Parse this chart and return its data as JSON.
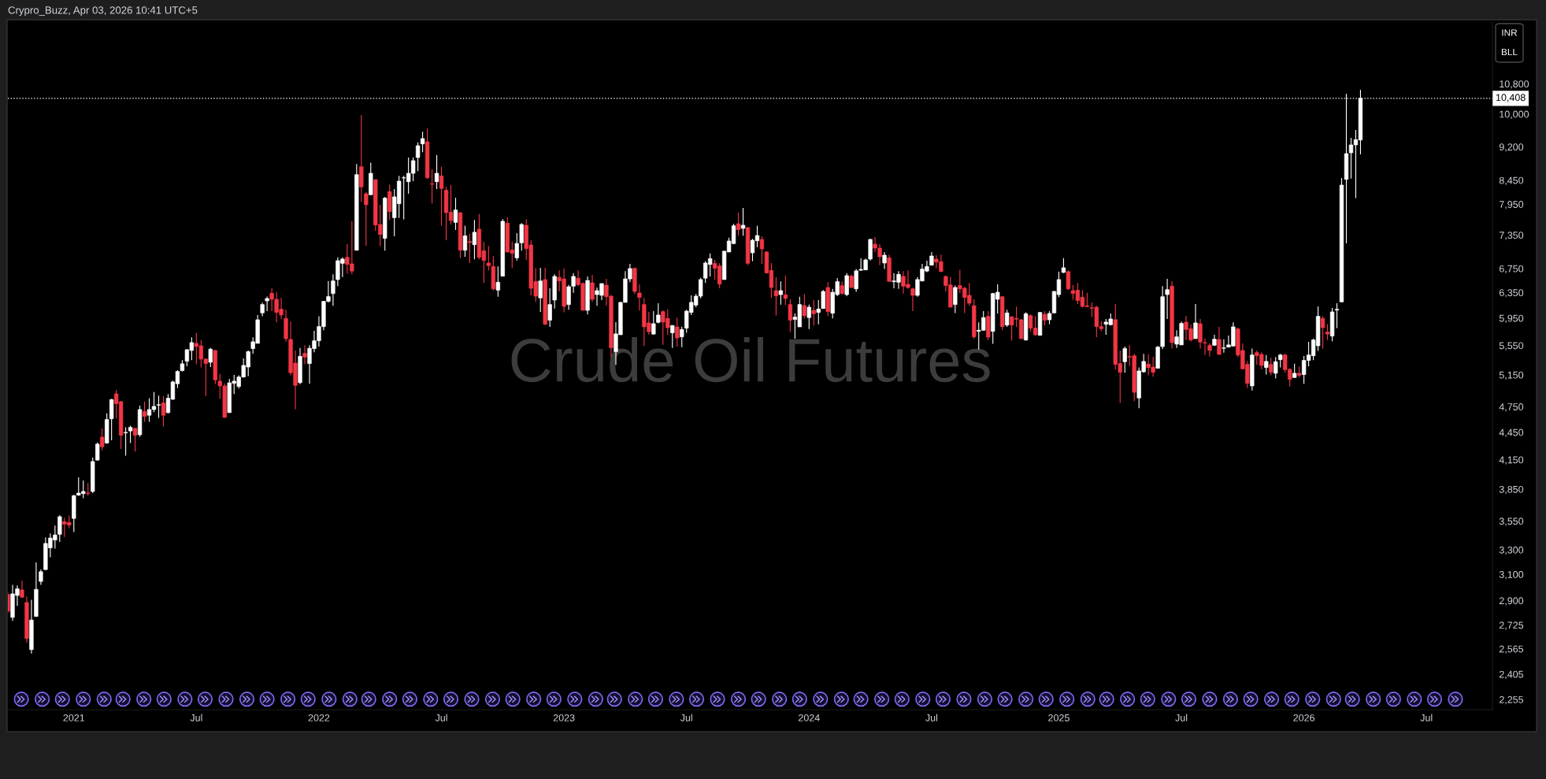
{
  "chart_data": {
    "type": "candlestick",
    "title": "Crude Oil Futures",
    "annotations": [
      "Crypro_Buzz, Apr 03, 2026 10:41 UTC+5",
      "INR",
      "BLL"
    ],
    "log": "y",
    "xlim": [
      "2020-09-28",
      "2026-10-12"
    ],
    "ylim": [
      2197,
      12650
    ],
    "xticks": [
      {
        "value": "2021-01-04",
        "label": "2021"
      },
      {
        "value": "2021-07-05",
        "label": "Jul"
      },
      {
        "value": "2022-01-03",
        "label": "2022"
      },
      {
        "value": "2022-07-04",
        "label": "Jul"
      },
      {
        "value": "2023-01-02",
        "label": "2023"
      },
      {
        "value": "2023-07-03",
        "label": "Jul"
      },
      {
        "value": "2024-01-01",
        "label": "2024"
      },
      {
        "value": "2024-07-01",
        "label": "Jul"
      },
      {
        "value": "2025-01-06",
        "label": "2025"
      },
      {
        "value": "2025-07-07",
        "label": "Jul"
      },
      {
        "value": "2026-01-05",
        "label": "2026"
      },
      {
        "value": "2026-07-06",
        "label": "Jul"
      }
    ],
    "yticks": [
      {
        "value": 2255,
        "label": "2,255"
      },
      {
        "value": 2405,
        "label": "2,405"
      },
      {
        "value": 2565,
        "label": "2,565"
      },
      {
        "value": 2725,
        "label": "2,725"
      },
      {
        "value": 2900,
        "label": "2,900"
      },
      {
        "value": 3100,
        "label": "3,100"
      },
      {
        "value": 3300,
        "label": "3,300"
      },
      {
        "value": 3550,
        "label": "3,550"
      },
      {
        "value": 3850,
        "label": "3,850"
      },
      {
        "value": 4150,
        "label": "4,150"
      },
      {
        "value": 4450,
        "label": "4,450"
      },
      {
        "value": 4750,
        "label": "4,750"
      },
      {
        "value": 5150,
        "label": "5,150"
      },
      {
        "value": 5550,
        "label": "5,550"
      },
      {
        "value": 5950,
        "label": "5,950"
      },
      {
        "value": 6350,
        "label": "6,350"
      },
      {
        "value": 6750,
        "label": "6,750"
      },
      {
        "value": 7350,
        "label": "7,350"
      },
      {
        "value": 7950,
        "label": "7,950"
      },
      {
        "value": 8450,
        "label": "8,450"
      },
      {
        "value": 9200,
        "label": "9,200"
      },
      {
        "value": 10000,
        "label": "10,000"
      },
      {
        "value": 10800,
        "label": "10,800"
      }
    ],
    "ref_lines": [
      {
        "axis": "y",
        "value": 10408,
        "label": "10,408",
        "color": "#ffffff",
        "line_style": "dotted"
      }
    ],
    "x": [
      "2020-09-28",
      "2020-10-05",
      "2020-10-12",
      "2020-10-19",
      "2020-10-26",
      "2020-11-02",
      "2020-11-09",
      "2020-11-16",
      "2020-11-23",
      "2020-11-30",
      "2020-12-07",
      "2020-12-14",
      "2020-12-21",
      "2020-12-28",
      "2021-01-04",
      "2021-01-11",
      "2021-01-18",
      "2021-01-25",
      "2021-02-01",
      "2021-02-08",
      "2021-02-15",
      "2021-02-22",
      "2021-03-01",
      "2021-03-08",
      "2021-03-15",
      "2021-03-22",
      "2021-03-29",
      "2021-04-05",
      "2021-04-12",
      "2021-04-19",
      "2021-04-26",
      "2021-05-03",
      "2021-05-10",
      "2021-05-17",
      "2021-05-24",
      "2021-05-31",
      "2021-06-07",
      "2021-06-14",
      "2021-06-21",
      "2021-06-28",
      "2021-07-05",
      "2021-07-12",
      "2021-07-19",
      "2021-07-26",
      "2021-08-02",
      "2021-08-09",
      "2021-08-16",
      "2021-08-23",
      "2021-08-30",
      "2021-09-06",
      "2021-09-13",
      "2021-09-20",
      "2021-09-27",
      "2021-10-04",
      "2021-10-11",
      "2021-10-18",
      "2021-10-25",
      "2021-11-01",
      "2021-11-08",
      "2021-11-15",
      "2021-11-22",
      "2021-11-29",
      "2021-12-06",
      "2021-12-13",
      "2021-12-20",
      "2021-12-27",
      "2022-01-03",
      "2022-01-10",
      "2022-01-17",
      "2022-01-24",
      "2022-01-31",
      "2022-02-07",
      "2022-02-14",
      "2022-02-21",
      "2022-02-28",
      "2022-03-07",
      "2022-03-14",
      "2022-03-21",
      "2022-03-28",
      "2022-04-04",
      "2022-04-11",
      "2022-04-18",
      "2022-04-25",
      "2022-05-02",
      "2022-05-09",
      "2022-05-16",
      "2022-05-23",
      "2022-05-30",
      "2022-06-06",
      "2022-06-13",
      "2022-06-20",
      "2022-06-27",
      "2022-07-04",
      "2022-07-11",
      "2022-07-18",
      "2022-07-25",
      "2022-08-01",
      "2022-08-08",
      "2022-08-15",
      "2022-08-22",
      "2022-08-29",
      "2022-09-05",
      "2022-09-12",
      "2022-09-19",
      "2022-09-26",
      "2022-10-03",
      "2022-10-10",
      "2022-10-17",
      "2022-10-24",
      "2022-10-31",
      "2022-11-07",
      "2022-11-14",
      "2022-11-21",
      "2022-11-28",
      "2022-12-05",
      "2022-12-12",
      "2022-12-19",
      "2022-12-26",
      "2023-01-02",
      "2023-01-09",
      "2023-01-16",
      "2023-01-23",
      "2023-01-30",
      "2023-02-06",
      "2023-02-13",
      "2023-02-20",
      "2023-02-27",
      "2023-03-06",
      "2023-03-13",
      "2023-03-20",
      "2023-03-27",
      "2023-04-03",
      "2023-04-10",
      "2023-04-17",
      "2023-04-24",
      "2023-05-01",
      "2023-05-08",
      "2023-05-15",
      "2023-05-22",
      "2023-05-29",
      "2023-06-05",
      "2023-06-12",
      "2023-06-19",
      "2023-06-26",
      "2023-07-03",
      "2023-07-10",
      "2023-07-17",
      "2023-07-24",
      "2023-07-31",
      "2023-08-07",
      "2023-08-14",
      "2023-08-21",
      "2023-08-28",
      "2023-09-04",
      "2023-09-11",
      "2023-09-18",
      "2023-09-25",
      "2023-10-02",
      "2023-10-09",
      "2023-10-16",
      "2023-10-23",
      "2023-10-30",
      "2023-11-06",
      "2023-11-13",
      "2023-11-20",
      "2023-11-27",
      "2023-12-04",
      "2023-12-11",
      "2023-12-18",
      "2023-12-25",
      "2024-01-01",
      "2024-01-08",
      "2024-01-15",
      "2024-01-22",
      "2024-01-29",
      "2024-02-05",
      "2024-02-12",
      "2024-02-19",
      "2024-02-26",
      "2024-03-04",
      "2024-03-11",
      "2024-03-18",
      "2024-03-25",
      "2024-04-01",
      "2024-04-08",
      "2024-04-15",
      "2024-04-22",
      "2024-04-29",
      "2024-05-06",
      "2024-05-13",
      "2024-05-20",
      "2024-05-27",
      "2024-06-03",
      "2024-06-10",
      "2024-06-17",
      "2024-06-24",
      "2024-07-01",
      "2024-07-08",
      "2024-07-15",
      "2024-07-22",
      "2024-07-29",
      "2024-08-05",
      "2024-08-12",
      "2024-08-19",
      "2024-08-26",
      "2024-09-02",
      "2024-09-09",
      "2024-09-16",
      "2024-09-23",
      "2024-09-30",
      "2024-10-07",
      "2024-10-14",
      "2024-10-21",
      "2024-10-28",
      "2024-11-04",
      "2024-11-11",
      "2024-11-18",
      "2024-11-25",
      "2024-12-02",
      "2024-12-09",
      "2024-12-16",
      "2024-12-23",
      "2024-12-30",
      "2025-01-06",
      "2025-01-13",
      "2025-01-20",
      "2025-01-27",
      "2025-02-03",
      "2025-02-10",
      "2025-02-17",
      "2025-02-24",
      "2025-03-03",
      "2025-03-10",
      "2025-03-17",
      "2025-03-24",
      "2025-03-31",
      "2025-04-07",
      "2025-04-14",
      "2025-04-21",
      "2025-04-28",
      "2025-05-05",
      "2025-05-12",
      "2025-05-19",
      "2025-05-26",
      "2025-06-02",
      "2025-06-09",
      "2025-06-16",
      "2025-06-23",
      "2025-06-30",
      "2025-07-07",
      "2025-07-14",
      "2025-07-21",
      "2025-07-28",
      "2025-08-04",
      "2025-08-11",
      "2025-08-18",
      "2025-08-25",
      "2025-09-01",
      "2025-09-08",
      "2025-09-15",
      "2025-09-22",
      "2025-09-29",
      "2025-10-06",
      "2025-10-13",
      "2025-10-20",
      "2025-10-27",
      "2025-11-03",
      "2025-11-10",
      "2025-11-17",
      "2025-11-24",
      "2025-12-01",
      "2025-12-08",
      "2025-12-15",
      "2025-12-22",
      "2025-12-29",
      "2026-01-05",
      "2026-01-12",
      "2026-01-19",
      "2026-01-26",
      "2026-02-02",
      "2026-02-09",
      "2026-02-16",
      "2026-02-23",
      "2026-03-02",
      "2026-03-09",
      "2026-03-16",
      "2026-03-23",
      "2026-03-30"
    ],
    "ohlc": [
      [
        2945,
        2960,
        2810,
        2823
      ],
      [
        2779,
        3018,
        2754,
        2950
      ],
      [
        2938,
        3014,
        2861,
        2988
      ],
      [
        2980,
        3050,
        2919,
        2925
      ],
      [
        2886,
        2931,
        2606,
        2633
      ],
      [
        2560,
        2905,
        2534,
        2760
      ],
      [
        2786,
        3196,
        2782,
        2984
      ],
      [
        3045,
        3138,
        3018,
        3121
      ],
      [
        3138,
        3406,
        3134,
        3354
      ],
      [
        3316,
        3440,
        3237,
        3400
      ],
      [
        3383,
        3510,
        3310,
        3427
      ],
      [
        3433,
        3605,
        3366,
        3590
      ],
      [
        3545,
        3581,
        3410,
        3523
      ],
      [
        3538,
        3598,
        3485,
        3515
      ],
      [
        3574,
        3795,
        3452,
        3787
      ],
      [
        3792,
        3969,
        3787,
        3812
      ],
      [
        3807,
        3937,
        3762,
        3828
      ],
      [
        3812,
        3911,
        3787,
        3807
      ],
      [
        3828,
        4173,
        3812,
        4131
      ],
      [
        4146,
        4337,
        4140,
        4318
      ],
      [
        4396,
        4494,
        4251,
        4289
      ],
      [
        4330,
        4669,
        4324,
        4597
      ],
      [
        4606,
        4846,
        4360,
        4836
      ],
      [
        4908,
        4958,
        4606,
        4785
      ],
      [
        4811,
        4817,
        4266,
        4416
      ],
      [
        4443,
        4506,
        4192,
        4449
      ],
      [
        4465,
        4524,
        4330,
        4506
      ],
      [
        4494,
        4500,
        4238,
        4416
      ],
      [
        4422,
        4763,
        4399,
        4715
      ],
      [
        4690,
        4811,
        4570,
        4634
      ],
      [
        4647,
        4853,
        4570,
        4715
      ],
      [
        4715,
        4931,
        4684,
        4753
      ],
      [
        4768,
        4885,
        4615,
        4773
      ],
      [
        4795,
        4879,
        4515,
        4647
      ],
      [
        4678,
        4905,
        4669,
        4853
      ],
      [
        4840,
        5075,
        4833,
        5058
      ],
      [
        5035,
        5212,
        4980,
        5195
      ],
      [
        5205,
        5346,
        5195,
        5297
      ],
      [
        5332,
        5498,
        5265,
        5491
      ],
      [
        5480,
        5666,
        5346,
        5591
      ],
      [
        5580,
        5730,
        5290,
        5535
      ],
      [
        5546,
        5628,
        5247,
        5361
      ],
      [
        5361,
        5371,
        4879,
        5300
      ],
      [
        5318,
        5516,
        5254,
        5498
      ],
      [
        5480,
        5487,
        5029,
        5084
      ],
      [
        5068,
        5161,
        4846,
        5007
      ],
      [
        5007,
        5040,
        4615,
        4622
      ],
      [
        4678,
        5098,
        4678,
        5047
      ],
      [
        5040,
        5150,
        4905,
        5068
      ],
      [
        5000,
        5143,
        4974,
        5122
      ],
      [
        5122,
        5371,
        5115,
        5275
      ],
      [
        5254,
        5480,
        5133,
        5464
      ],
      [
        5506,
        5666,
        5432,
        5602
      ],
      [
        5580,
        5997,
        5580,
        5925
      ],
      [
        6030,
        6188,
        5977,
        6159
      ],
      [
        6217,
        6285,
        6057,
        6254
      ],
      [
        6339,
        6419,
        6057,
        6242
      ],
      [
        6242,
        6356,
        5886,
        6037
      ],
      [
        6086,
        6265,
        5937,
        5997
      ],
      [
        5946,
        6077,
        5603,
        5647
      ],
      [
        5636,
        5898,
        5143,
        5178
      ],
      [
        5307,
        5480,
        4720,
        5014
      ],
      [
        5049,
        5516,
        5029,
        5399
      ],
      [
        5441,
        5553,
        5290,
        5388
      ],
      [
        5300,
        5553,
        5035,
        5510
      ],
      [
        5506,
        5761,
        5454,
        5617
      ],
      [
        5617,
        5977,
        5535,
        5823
      ],
      [
        5823,
        6217,
        5768,
        6209
      ],
      [
        6209,
        6540,
        6193,
        6285
      ],
      [
        6334,
        6651,
        6140,
        6540
      ],
      [
        6563,
        6945,
        6454,
        6886
      ],
      [
        6840,
        6945,
        6606,
        6914
      ],
      [
        6945,
        7182,
        6664,
        6821
      ],
      [
        6831,
        7616,
        6651,
        6706
      ],
      [
        7072,
        8805,
        7063,
        8572
      ],
      [
        8746,
        9977,
        8002,
        8308
      ],
      [
        8165,
        8198,
        7154,
        7939
      ],
      [
        8144,
        8839,
        8144,
        8601
      ],
      [
        8464,
        8464,
        7426,
        7540
      ],
      [
        7551,
        7939,
        7145,
        7361
      ],
      [
        7290,
        8100,
        7063,
        8073
      ],
      [
        8210,
        8359,
        7637,
        7802
      ],
      [
        7683,
        8264,
        7327,
        8100
      ],
      [
        7960,
        8544,
        7675,
        8431
      ],
      [
        8498,
        8544,
        7650,
        8504
      ],
      [
        8419,
        8953,
        8165,
        8601
      ],
      [
        8601,
        8953,
        8431,
        8882
      ],
      [
        8953,
        9306,
        8648,
        9226
      ],
      [
        9269,
        9559,
        9074,
        9395
      ],
      [
        9319,
        9635,
        8477,
        8504
      ],
      [
        8375,
        8688,
        7965,
        8365
      ],
      [
        8419,
        9013,
        8264,
        8601
      ],
      [
        8544,
        8746,
        7526,
        8275
      ],
      [
        8237,
        8308,
        7254,
        7781
      ],
      [
        7792,
        8348,
        7551,
        7627
      ],
      [
        7591,
        8084,
        7446,
        7834
      ],
      [
        7781,
        7781,
        6931,
        7072
      ],
      [
        7072,
        7526,
        6955,
        7337
      ],
      [
        7230,
        7376,
        6845,
        7211
      ],
      [
        7172,
        7637,
        6909,
        7402
      ],
      [
        7461,
        7755,
        6909,
        6945
      ],
      [
        7063,
        7221,
        6506,
        6890
      ],
      [
        6845,
        7149,
        6718,
        6799
      ],
      [
        6786,
        6969,
        6380,
        6410
      ],
      [
        6389,
        6786,
        6283,
        6519
      ],
      [
        6620,
        7653,
        6620,
        7612
      ],
      [
        7577,
        7693,
        7030,
        7040
      ],
      [
        7077,
        7230,
        6754,
        7016
      ],
      [
        6936,
        7387,
        6890,
        7195
      ],
      [
        7207,
        7577,
        7063,
        7551
      ],
      [
        7536,
        7653,
        6900,
        7100
      ],
      [
        7168,
        7254,
        6305,
        6419
      ],
      [
        6532,
        6754,
        6201,
        6292
      ],
      [
        6264,
        6763,
        6045,
        6540
      ],
      [
        6563,
        6763,
        5846,
        5858
      ],
      [
        5918,
        6419,
        5819,
        6159
      ],
      [
        6230,
        6651,
        6097,
        6616
      ],
      [
        6600,
        6718,
        6368,
        6540
      ],
      [
        6574,
        6750,
        6037,
        6130
      ],
      [
        6159,
        6475,
        6077,
        6445
      ],
      [
        6454,
        6673,
        6347,
        6616
      ],
      [
        6587,
        6718,
        6454,
        6479
      ],
      [
        6497,
        6519,
        6069,
        6069
      ],
      [
        6069,
        6616,
        6005,
        6548
      ],
      [
        6510,
        6642,
        6201,
        6242
      ],
      [
        6317,
        6432,
        6140,
        6381
      ],
      [
        6305,
        6497,
        6230,
        6497
      ],
      [
        6471,
        6574,
        6143,
        6283
      ],
      [
        6292,
        6313,
        5389,
        5517
      ],
      [
        5464,
        5890,
        5282,
        5716
      ],
      [
        5703,
        6201,
        5703,
        6193
      ],
      [
        6193,
        6706,
        6193,
        6574
      ],
      [
        6574,
        6831,
        6519,
        6750
      ],
      [
        6754,
        6763,
        6326,
        6368
      ],
      [
        6343,
        6484,
        6065,
        6271
      ],
      [
        6159,
        6263,
        5542,
        5819
      ],
      [
        5878,
        6045,
        5703,
        5747
      ],
      [
        5713,
        6057,
        5703,
        5866
      ],
      [
        5886,
        6180,
        5870,
        5997
      ],
      [
        6049,
        6069,
        5560,
        5890
      ],
      [
        5946,
        6085,
        5703,
        5807
      ],
      [
        5732,
        5846,
        5516,
        5839
      ],
      [
        5819,
        5958,
        5535,
        5658
      ],
      [
        5673,
        5823,
        5527,
        5780
      ],
      [
        5800,
        6077,
        5732,
        6057
      ],
      [
        6037,
        6305,
        5997,
        6193
      ],
      [
        6151,
        6326,
        6118,
        6292
      ],
      [
        6292,
        6593,
        6258,
        6563
      ],
      [
        6587,
        6877,
        6506,
        6845
      ],
      [
        6821,
        7016,
        6616,
        6923
      ],
      [
        6840,
        6900,
        6563,
        6754
      ],
      [
        6795,
        6840,
        6419,
        6488
      ],
      [
        6563,
        7063,
        6563,
        7054
      ],
      [
        7040,
        7303,
        7040,
        7240
      ],
      [
        7192,
        7563,
        7182,
        7526
      ],
      [
        7565,
        7781,
        7337,
        7451
      ],
      [
        7476,
        7875,
        7337,
        7536
      ],
      [
        7491,
        7501,
        6808,
        6840
      ],
      [
        7026,
        7279,
        6877,
        7254
      ],
      [
        7244,
        7526,
        7126,
        7341
      ],
      [
        7269,
        7327,
        6831,
        7096
      ],
      [
        7040,
        7054,
        6666,
        6675
      ],
      [
        6718,
        6845,
        6263,
        6432
      ],
      [
        6381,
        6606,
        5989,
        6296
      ],
      [
        6317,
        6532,
        6159,
        6381
      ],
      [
        6313,
        6629,
        6147,
        6254
      ],
      [
        6159,
        6242,
        5747,
        5918
      ],
      [
        5930,
        6019,
        5647,
        5965
      ],
      [
        5819,
        6283,
        5819,
        6159
      ],
      [
        6143,
        6326,
        5946,
        5986
      ],
      [
        5958,
        6159,
        5788,
        6118
      ],
      [
        6069,
        6230,
        5839,
        6017
      ],
      [
        6037,
        6230,
        5858,
        6089
      ],
      [
        6097,
        6390,
        6097,
        6368
      ],
      [
        6432,
        6519,
        5977,
        6049
      ],
      [
        6025,
        6410,
        5946,
        6355
      ],
      [
        6317,
        6587,
        6292,
        6528
      ],
      [
        6463,
        6532,
        6317,
        6334
      ],
      [
        6317,
        6673,
        6292,
        6629
      ],
      [
        6620,
        6651,
        6419,
        6432
      ],
      [
        6410,
        6741,
        6360,
        6710
      ],
      [
        6721,
        6932,
        6710,
        6735
      ],
      [
        6727,
        6923,
        6721,
        6900
      ],
      [
        6914,
        7279,
        6890,
        7269
      ],
      [
        7182,
        7313,
        7040,
        7110
      ],
      [
        7110,
        7182,
        6808,
        6955
      ],
      [
        6845,
        7040,
        6741,
        6983
      ],
      [
        6936,
        6992,
        6532,
        6532
      ],
      [
        6528,
        6673,
        6419,
        6540
      ],
      [
        6519,
        6706,
        6410,
        6651
      ],
      [
        6616,
        6706,
        6334,
        6454
      ],
      [
        6484,
        6718,
        6410,
        6432
      ],
      [
        6410,
        6432,
        6057,
        6305
      ],
      [
        6305,
        6606,
        6283,
        6563
      ],
      [
        6540,
        6831,
        6532,
        6741
      ],
      [
        6706,
        6886,
        6688,
        6786
      ],
      [
        6808,
        7040,
        6799,
        6969
      ],
      [
        6914,
        6983,
        6754,
        6863
      ],
      [
        6868,
        6992,
        6697,
        6697
      ],
      [
        6616,
        6629,
        6368,
        6463
      ],
      [
        6475,
        6606,
        6118,
        6118
      ],
      [
        6159,
        6463,
        6025,
        6432
      ],
      [
        6463,
        6727,
        6347,
        6410
      ],
      [
        6419,
        6445,
        6025,
        6271
      ],
      [
        6305,
        6506,
        6140,
        6180
      ],
      [
        6140,
        6242,
        5647,
        5673
      ],
      [
        5753,
        5886,
        5494,
        5769
      ],
      [
        5769,
        6057,
        5761,
        5958
      ],
      [
        5977,
        6057,
        5628,
        5669
      ],
      [
        5753,
        6347,
        5574,
        6334
      ],
      [
        6242,
        6484,
        6021,
        6355
      ],
      [
        6283,
        6292,
        5768,
        5823
      ],
      [
        5846,
        6077,
        5819,
        6029
      ],
      [
        5970,
        5977,
        5621,
        5846
      ],
      [
        5946,
        6126,
        5819,
        5934
      ],
      [
        5925,
        5937,
        5647,
        5647
      ],
      [
        5628,
        6037,
        5617,
        6017
      ],
      [
        5989,
        6005,
        5753,
        5800
      ],
      [
        5800,
        5977,
        5684,
        5703
      ],
      [
        5695,
        6037,
        5692,
        6037
      ],
      [
        6009,
        6057,
        5839,
        5918
      ],
      [
        5925,
        6057,
        5858,
        6021
      ],
      [
        6029,
        6377,
        6029,
        6368
      ],
      [
        6317,
        6697,
        6276,
        6563
      ],
      [
        6684,
        6932,
        6673,
        6763
      ],
      [
        6697,
        6718,
        6389,
        6410
      ],
      [
        6381,
        6475,
        6234,
        6334
      ],
      [
        6389,
        6506,
        6168,
        6222
      ],
      [
        6275,
        6389,
        6110,
        6130
      ],
      [
        6140,
        6347,
        6118,
        6126
      ],
      [
        6110,
        6193,
        5965,
        6102
      ],
      [
        6118,
        6140,
        5669,
        5823
      ],
      [
        5823,
        5904,
        5753,
        5792
      ],
      [
        5858,
        5937,
        5703,
        5890
      ],
      [
        5851,
        6019,
        5839,
        5937
      ],
      [
        5926,
        6167,
        5219,
        5289
      ],
      [
        5300,
        5480,
        4795,
        5184
      ],
      [
        5325,
        5535,
        5178,
        5506
      ],
      [
        5396,
        5553,
        5265,
        5389
      ],
      [
        5407,
        5432,
        4817,
        4926
      ],
      [
        4856,
        5247,
        4730,
        5202
      ],
      [
        5190,
        5432,
        5178,
        5329
      ],
      [
        5293,
        5425,
        5143,
        5247
      ],
      [
        5254,
        5389,
        5126,
        5184
      ],
      [
        5237,
        5542,
        5237,
        5527
      ],
      [
        5535,
        6454,
        5498,
        6283
      ],
      [
        6317,
        6574,
        5937,
        6397
      ],
      [
        6454,
        6540,
        5506,
        5591
      ],
      [
        5569,
        5769,
        5516,
        5673
      ],
      [
        5558,
        5898,
        5558,
        5870
      ],
      [
        5890,
        5985,
        5628,
        5780
      ],
      [
        5792,
        5858,
        5603,
        5628
      ],
      [
        5647,
        6167,
        5647,
        5878
      ],
      [
        5866,
        5937,
        5506,
        5599
      ],
      [
        5591,
        5647,
        5417,
        5584
      ],
      [
        5553,
        5580,
        5396,
        5480
      ],
      [
        5553,
        5703,
        5542,
        5639
      ],
      [
        5636,
        5819,
        5421,
        5425
      ],
      [
        5510,
        5639,
        5450,
        5516
      ],
      [
        5527,
        5692,
        5527,
        5558
      ],
      [
        5542,
        5886,
        5535,
        5819
      ],
      [
        5788,
        5807,
        5389,
        5417
      ],
      [
        5480,
        5580,
        5223,
        5230
      ],
      [
        5289,
        5336,
        4980,
        5040
      ],
      [
        5007,
        5506,
        4950,
        5417
      ],
      [
        5450,
        5480,
        5282,
        5407
      ],
      [
        5425,
        5454,
        5223,
        5275
      ],
      [
        5247,
        5417,
        5154,
        5329
      ],
      [
        5289,
        5382,
        5143,
        5184
      ],
      [
        5171,
        5389,
        5102,
        5325
      ],
      [
        5353,
        5432,
        5247,
        5417
      ],
      [
        5417,
        5436,
        5178,
        5219
      ],
      [
        5223,
        5237,
        5000,
        5092
      ],
      [
        5116,
        5297,
        5109,
        5171
      ],
      [
        5171,
        5261,
        5116,
        5143
      ],
      [
        5154,
        5403,
        5035,
        5343
      ],
      [
        5343,
        5602,
        5265,
        5417
      ],
      [
        5407,
        5647,
        5346,
        5628
      ],
      [
        5546,
        6130,
        5475,
        5977
      ],
      [
        5946,
        5977,
        5506,
        5807
      ],
      [
        5742,
        5858,
        5628,
        5713
      ],
      [
        5684,
        6106,
        5609,
        6045
      ],
      [
        6073,
        6180,
        5800,
        6085
      ],
      [
        6201,
        8499,
        6193,
        8347
      ],
      [
        8470,
        10531,
        7196,
        9043
      ],
      [
        9062,
        9413,
        8487,
        9245
      ],
      [
        9245,
        9604,
        8073,
        9370
      ],
      [
        9362,
        10637,
        9025,
        10408
      ]
    ],
    "colors": [
      "#f23645",
      "#ffffff",
      "#ffffff",
      "#f23645",
      "#f23645",
      "#ffffff",
      "#ffffff",
      "#ffffff",
      "#ffffff",
      "#ffffff",
      "#ffffff",
      "#ffffff",
      "#f23645",
      "#f23645",
      "#ffffff",
      "#ffffff",
      "#ffffff",
      "#f23645",
      "#ffffff",
      "#ffffff",
      "#f23645",
      "#ffffff",
      "#ffffff",
      "#f23645",
      "#f23645",
      "#ffffff",
      "#ffffff",
      "#f23645",
      "#ffffff",
      "#f23645",
      "#ffffff",
      "#ffffff",
      "#ffffff",
      "#f23645",
      "#ffffff",
      "#ffffff",
      "#ffffff",
      "#ffffff",
      "#ffffff",
      "#ffffff",
      "#f23645",
      "#f23645",
      "#f23645",
      "#ffffff",
      "#f23645",
      "#f23645",
      "#f23645",
      "#ffffff",
      "#ffffff",
      "#ffffff",
      "#ffffff",
      "#ffffff",
      "#ffffff",
      "#ffffff",
      "#ffffff",
      "#ffffff",
      "#f23645",
      "#f23645",
      "#f23645",
      "#f23645",
      "#f23645",
      "#f23645",
      "#ffffff",
      "#f23645",
      "#ffffff",
      "#ffffff",
      "#ffffff",
      "#ffffff",
      "#ffffff",
      "#ffffff",
      "#ffffff",
      "#ffffff",
      "#f23645",
      "#f23645",
      "#ffffff",
      "#f23645",
      "#f23645",
      "#ffffff",
      "#f23645",
      "#f23645",
      "#ffffff",
      "#f23645",
      "#ffffff",
      "#ffffff",
      "#ffffff",
      "#ffffff",
      "#ffffff",
      "#ffffff",
      "#ffffff",
      "#f23645",
      "#f23645",
      "#ffffff",
      "#f23645",
      "#f23645",
      "#f23645",
      "#ffffff",
      "#f23645",
      "#ffffff",
      "#f23645",
      "#ffffff",
      "#f23645",
      "#f23645",
      "#f23645",
      "#f23645",
      "#ffffff",
      "#ffffff",
      "#f23645",
      "#f23645",
      "#ffffff",
      "#ffffff",
      "#f23645",
      "#f23645",
      "#f23645",
      "#ffffff",
      "#f23645",
      "#ffffff",
      "#ffffff",
      "#f23645",
      "#f23645",
      "#ffffff",
      "#ffffff",
      "#f23645",
      "#f23645",
      "#ffffff",
      "#f23645",
      "#ffffff",
      "#ffffff",
      "#f23645",
      "#f23645",
      "#ffffff",
      "#ffffff",
      "#ffffff",
      "#ffffff",
      "#f23645",
      "#f23645",
      "#f23645",
      "#f23645",
      "#ffffff",
      "#ffffff",
      "#f23645",
      "#f23645",
      "#ffffff",
      "#f23645",
      "#ffffff",
      "#ffffff",
      "#ffffff",
      "#ffffff",
      "#ffffff",
      "#ffffff",
      "#ffffff",
      "#f23645",
      "#f23645",
      "#ffffff",
      "#ffffff",
      "#ffffff",
      "#f23645",
      "#ffffff",
      "#f23645",
      "#ffffff",
      "#ffffff",
      "#f23645",
      "#f23645",
      "#f23645",
      "#f23645",
      "#ffffff",
      "#f23645",
      "#f23645",
      "#ffffff",
      "#ffffff",
      "#f23645",
      "#ffffff",
      "#f23645",
      "#ffffff",
      "#ffffff",
      "#f23645",
      "#ffffff",
      "#ffffff",
      "#f23645",
      "#ffffff",
      "#f23645",
      "#ffffff",
      "#ffffff",
      "#ffffff",
      "#ffffff",
      "#f23645",
      "#f23645",
      "#ffffff",
      "#f23645",
      "#ffffff",
      "#ffffff",
      "#f23645",
      "#f23645",
      "#f23645",
      "#ffffff",
      "#ffffff",
      "#ffffff",
      "#ffffff",
      "#f23645",
      "#f23645",
      "#f23645",
      "#f23645",
      "#ffffff",
      "#f23645",
      "#f23645",
      "#f23645",
      "#f23645",
      "#ffffff",
      "#ffffff",
      "#f23645",
      "#ffffff",
      "#ffffff",
      "#f23645",
      "#ffffff",
      "#f23645",
      "#f23645",
      "#f23645",
      "#ffffff",
      "#f23645",
      "#f23645",
      "#ffffff",
      "#f23645",
      "#ffffff",
      "#ffffff",
      "#ffffff",
      "#ffffff",
      "#f23645",
      "#f23645",
      "#f23645",
      "#f23645",
      "#f23645",
      "#f23645",
      "#f23645",
      "#f23645",
      "#ffffff",
      "#ffffff",
      "#f23645",
      "#f23645",
      "#ffffff",
      "#f23645",
      "#f23645",
      "#ffffff",
      "#ffffff",
      "#f23645",
      "#f23645",
      "#ffffff",
      "#ffffff",
      "#ffffff",
      "#f23645",
      "#ffffff",
      "#ffffff",
      "#f23645",
      "#f23645",
      "#ffffff",
      "#f23645",
      "#f23645",
      "#f23645",
      "#ffffff",
      "#f23645",
      "#ffffff",
      "#ffffff",
      "#ffffff",
      "#f23645",
      "#f23645",
      "#f23645",
      "#ffffff",
      "#f23645",
      "#f23645",
      "#ffffff",
      "#f23645",
      "#ffffff",
      "#ffffff",
      "#f23645",
      "#f23645",
      "#ffffff",
      "#f23645",
      "#ffffff",
      "#ffffff",
      "#ffffff",
      "#ffffff",
      "#f23645",
      "#f23645",
      "#ffffff",
      "#ffffff",
      "#ffffff",
      "#ffffff",
      "#ffffff",
      "#ffffff",
      "#ffffff"
    ]
  }
}
